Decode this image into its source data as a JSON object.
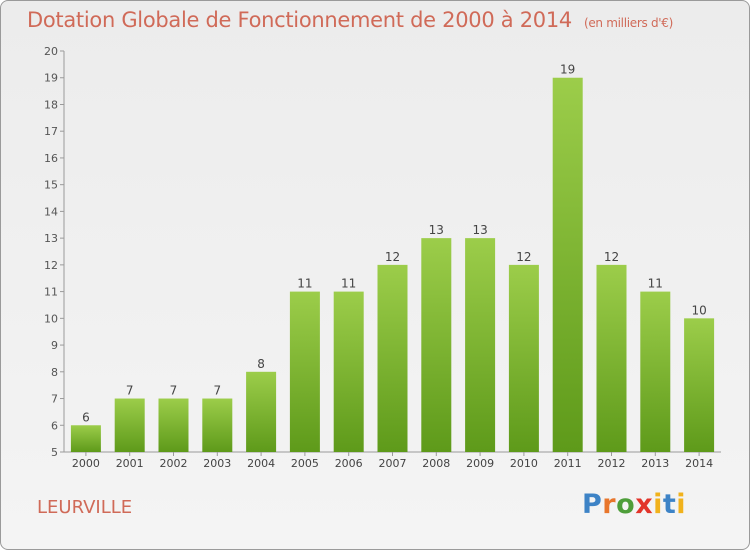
{
  "header": {
    "title": "Dotation Globale de Fonctionnement de 2000 à 2014",
    "subtitle": "(en milliers d'€)"
  },
  "footer": {
    "commune": "LEURVILLE",
    "logo_text": "Proxiti"
  },
  "colors": {
    "bar_light": "#9ccd4a",
    "bar_dark": "#5e9a1a",
    "title": "#d06a58",
    "logo_p": "#3d83c6",
    "logo_r": "#e8762c",
    "logo_o": "#4e9e3a",
    "logo_x": "#e2342a",
    "logo_i": "#f1b21c",
    "logo_t": "#3d83c6"
  },
  "chart_data": {
    "type": "bar",
    "categories": [
      "2000",
      "2001",
      "2002",
      "2003",
      "2004",
      "2005",
      "2006",
      "2007",
      "2008",
      "2009",
      "2010",
      "2011",
      "2012",
      "2013",
      "2014"
    ],
    "values": [
      6,
      7,
      7,
      7,
      8,
      11,
      11,
      12,
      13,
      13,
      12,
      19,
      12,
      11,
      10
    ],
    "ylim": [
      5,
      20
    ],
    "yticks": [
      5,
      6,
      7,
      8,
      9,
      10,
      11,
      12,
      13,
      14,
      15,
      16,
      17,
      18,
      19,
      20
    ],
    "grid": false,
    "xlabel": "",
    "ylabel": ""
  }
}
